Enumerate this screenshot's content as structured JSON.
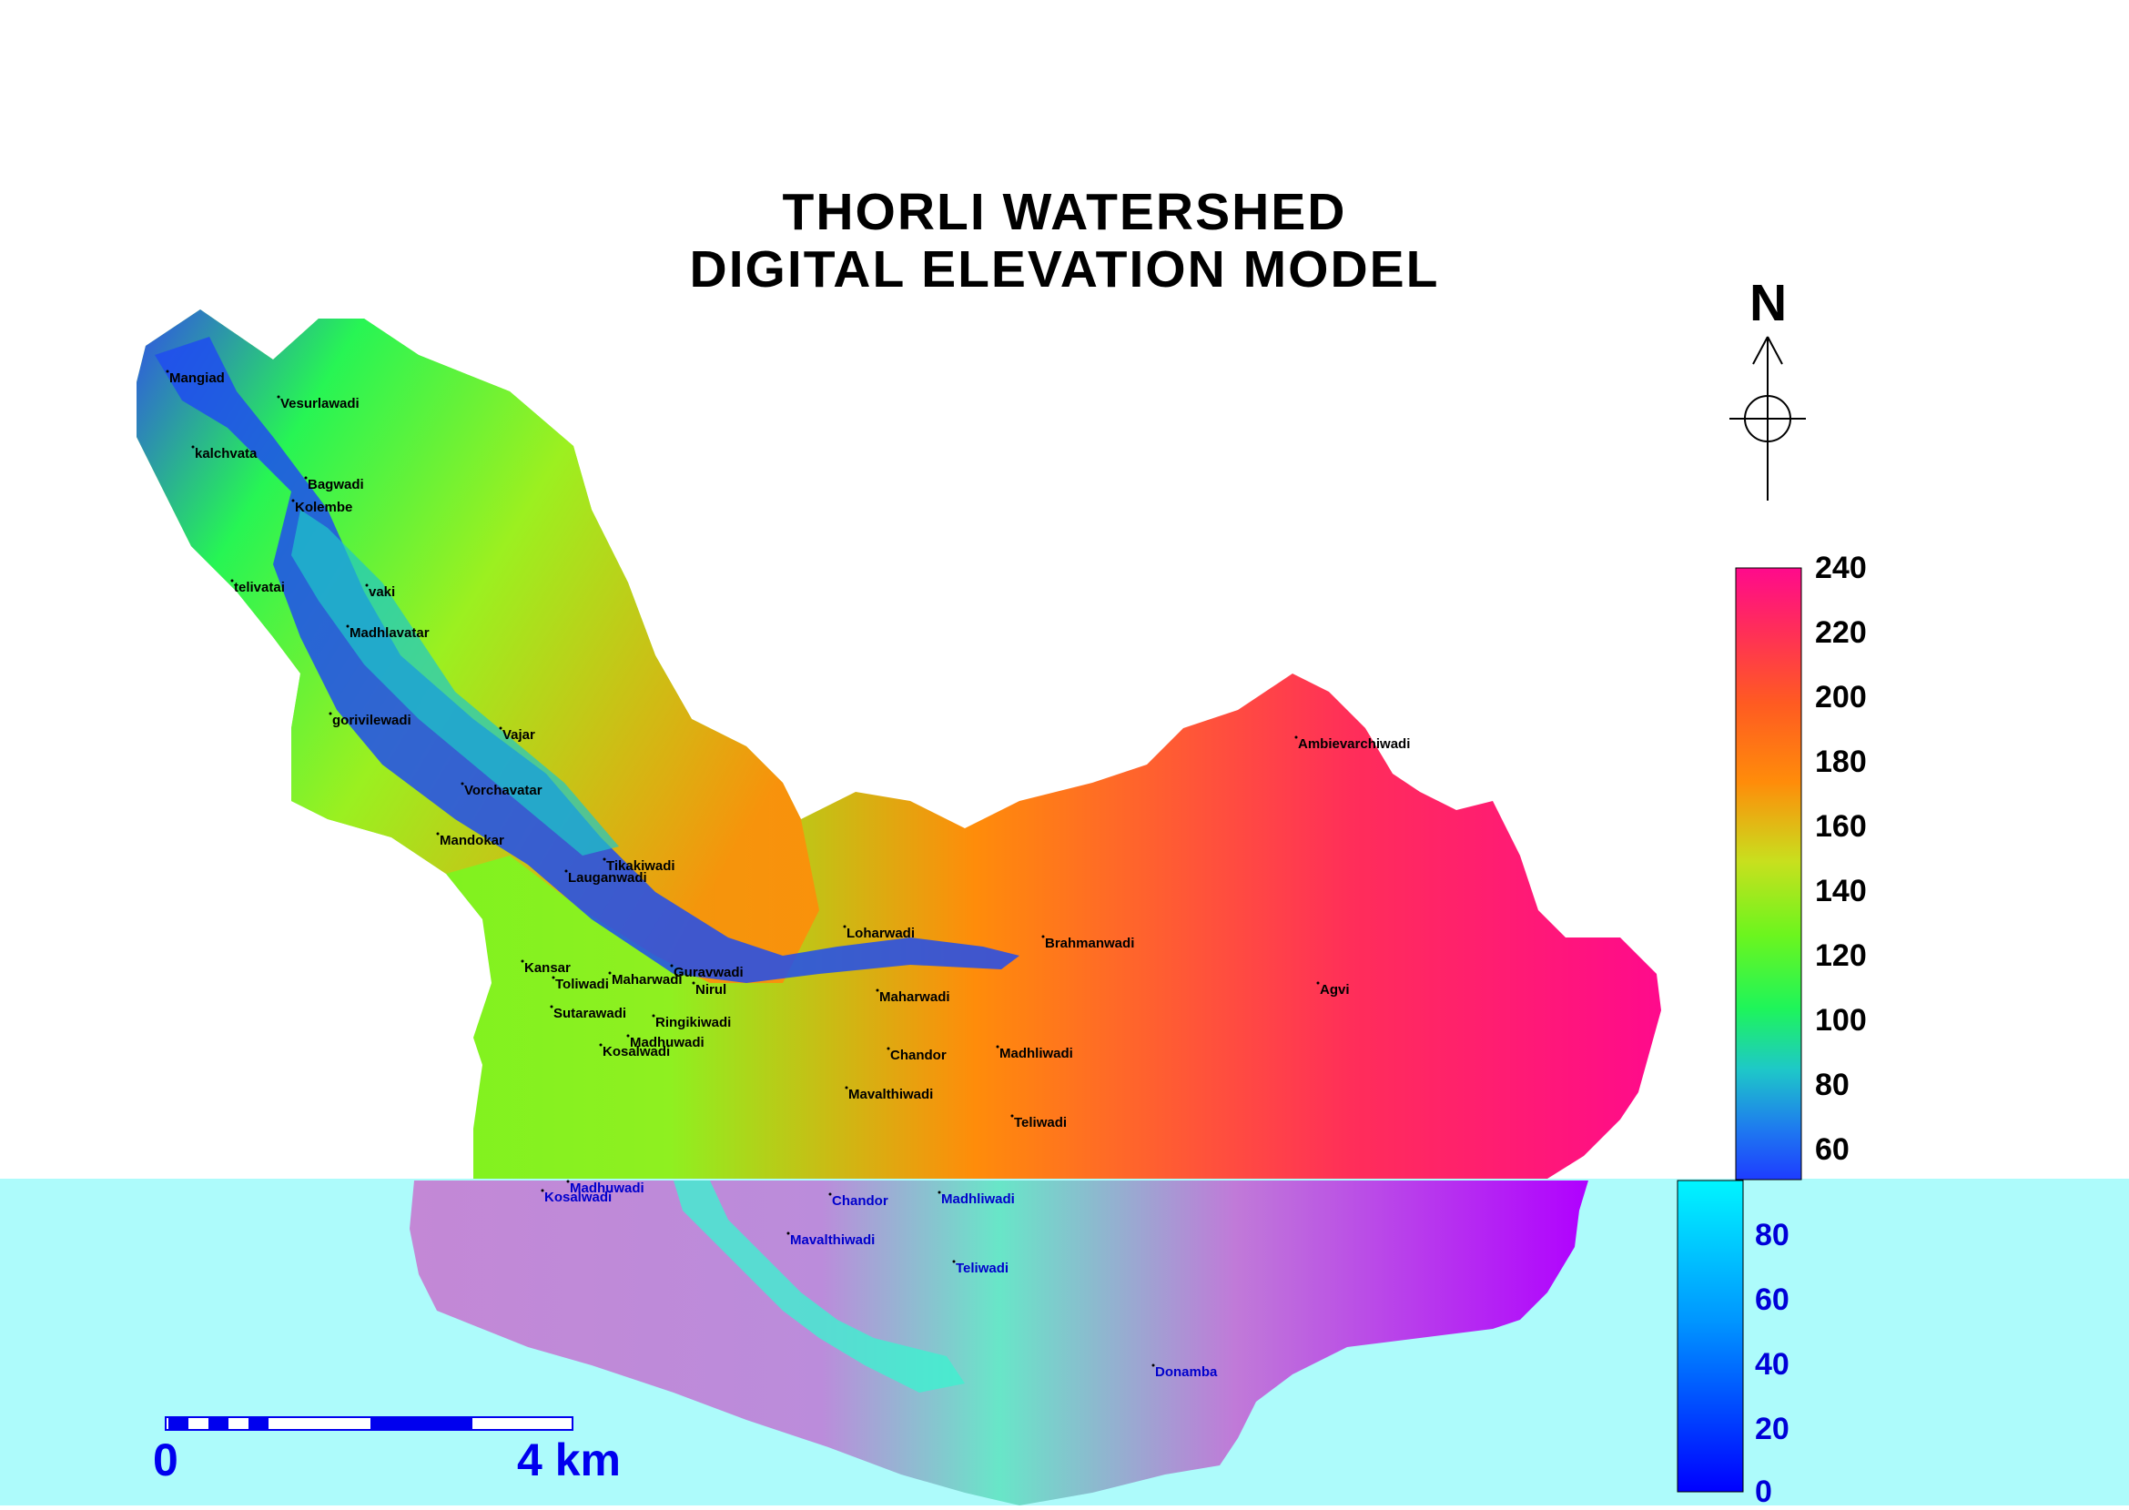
{
  "title": {
    "line1": "THORLI  WATERSHED",
    "line2": "DIGITAL  ELEVATION  MODEL"
  },
  "north_arrow": {
    "label": "N"
  },
  "legend_upper": {
    "ticks": [
      "240",
      "220",
      "200",
      "180",
      "160",
      "140",
      "120",
      "100",
      "80",
      "60"
    ],
    "colors": [
      "#ff0a8c",
      "#ff2d5a",
      "#ff5a22",
      "#ff8c0a",
      "#c8e01e",
      "#6cf51e",
      "#1ef55a",
      "#1ec8c8",
      "#1e78f0",
      "#1e3cff"
    ]
  },
  "legend_lower": {
    "ticks": [
      "80",
      "60",
      "40",
      "20",
      "0"
    ],
    "colors": [
      "#00f5ff",
      "#0096ff",
      "#0000ff"
    ]
  },
  "scale": {
    "start": "0",
    "end": "4 km"
  },
  "villages_upper": [
    "Mangiad",
    "Vesurlawadi",
    "kalchvata",
    "Bagwadi",
    "Kolembe",
    "telivatai",
    "vaki",
    "Madhlavatar",
    "gorivilewadi",
    "Vajar",
    "Vorchavatar",
    "Mandokar",
    "Tikakiwadi",
    "Lauganwadi",
    "Loharwadi",
    "Brahmanwadi",
    "Ambievarchiwadi",
    "Kansar",
    "Toliwadi",
    "Maharwadi",
    "Guravwadi",
    "Nirul",
    "Maharwadi",
    "Agvi",
    "Sutarawadi",
    "Ringikiwadi",
    "Madhuwadi",
    "Kosalwadi",
    "Chandor",
    "Madhliwadi",
    "Mavalthiwadi",
    "Teliwadi"
  ],
  "villages_lower": [
    "Madhuwadi",
    "Kosalwadi",
    "Chandor",
    "Madhliwadi",
    "Mavalthiwadi",
    "Teliwadi",
    "Donamba"
  ],
  "colors": {
    "band": "#adfbfb",
    "scale_bar": "#0000ee",
    "lower_text": "#0000d8"
  }
}
